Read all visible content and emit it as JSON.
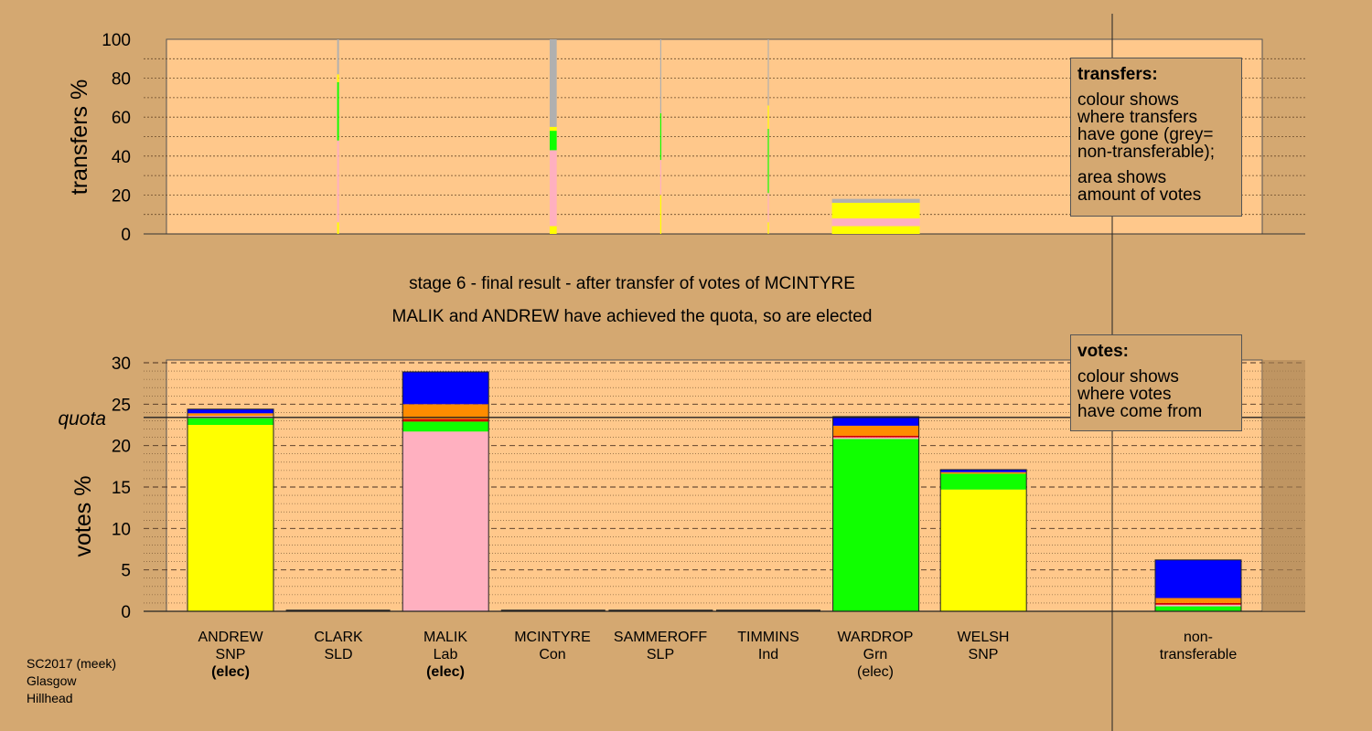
{
  "captions": {
    "stage": "stage 6 - final result - after transfer of votes of MCINTYRE",
    "elected": "MALIK and ANDREW have achieved the quota, so are elected"
  },
  "legends": {
    "transfers": {
      "title": "transfers:",
      "lines1": [
        "colour shows",
        "where transfers",
        "have gone (grey=",
        "non-transferable);"
      ],
      "lines2": [
        "area shows",
        "amount of votes"
      ]
    },
    "votes": {
      "title": "votes:",
      "lines1": [
        "colour shows",
        "where votes",
        "have come from"
      ]
    }
  },
  "colors": {
    "background": "#d4a871",
    "plot_background": "#ffc88b",
    "SNP": "#ffff00",
    "Lab": "#ffb0c0",
    "Grn": "#10ff00",
    "Con": "#0000ff",
    "SLD": "#ff8c00",
    "SLP": "#d00000",
    "Ind": "#555555",
    "nontransferable": "#b0b0b0"
  },
  "candidates": [
    {
      "name": "ANDREW",
      "party": "SNP",
      "status": "(elec)",
      "status_bold": true
    },
    {
      "name": "CLARK",
      "party": "SLD",
      "status": "",
      "status_bold": false
    },
    {
      "name": "MALIK",
      "party": "Lab",
      "status": "(elec)",
      "status_bold": true
    },
    {
      "name": "MCINTYRE",
      "party": "Con",
      "status": "",
      "status_bold": false
    },
    {
      "name": "SAMMEROFF",
      "party": "SLP",
      "status": "",
      "status_bold": false
    },
    {
      "name": "TIMMINS",
      "party": "Ind",
      "status": "",
      "status_bold": false
    },
    {
      "name": "WARDROP",
      "party": "Grn",
      "status": "(elec)",
      "status_bold": false
    },
    {
      "name": "WELSH",
      "party": "SNP",
      "status": "",
      "status_bold": false
    }
  ],
  "nontransferable_label": [
    "non-",
    "transferable"
  ],
  "source": [
    "SC2017 (meek)",
    "Glasgow",
    "Hillhead"
  ],
  "chart_data": [
    {
      "type": "bar",
      "subtype": "stacked-variable-width",
      "ylabel": "transfers %",
      "ylim": [
        0,
        100
      ],
      "yticks": [
        0,
        20,
        40,
        60,
        80,
        100
      ],
      "grid": true,
      "bars": [
        {
          "candidate": "CLARK",
          "width": 2.0,
          "segments": [
            {
              "to": "SNP",
              "value": 6
            },
            {
              "to": "Lab",
              "value": 42
            },
            {
              "to": "Grn",
              "value": 30
            },
            {
              "to": "SNP",
              "value": 4
            },
            {
              "to": "non-transferable",
              "value": 18
            }
          ]
        },
        {
          "candidate": "MCINTYRE",
          "width": 8.0,
          "segments": [
            {
              "to": "SNP",
              "value": 4
            },
            {
              "to": "Lab",
              "value": 39
            },
            {
              "to": "Grn",
              "value": 10
            },
            {
              "to": "SNP",
              "value": 2
            },
            {
              "to": "non-transferable",
              "value": 45
            }
          ]
        },
        {
          "candidate": "SAMMEROFF",
          "width": 0.2,
          "segments": [
            {
              "to": "SNP",
              "value": 20
            },
            {
              "to": "Lab",
              "value": 18
            },
            {
              "to": "Grn",
              "value": 24
            },
            {
              "to": "non-transferable",
              "value": 38
            }
          ]
        },
        {
          "candidate": "TIMMINS",
          "width": 0.3,
          "segments": [
            {
              "to": "SNP",
              "value": 6
            },
            {
              "to": "Lab",
              "value": 15
            },
            {
              "to": "Grn",
              "value": 33
            },
            {
              "to": "SNP",
              "value": 12
            },
            {
              "to": "non-transferable",
              "value": 34
            }
          ]
        },
        {
          "candidate": "WARDROP",
          "width": 100,
          "segments": [
            {
              "to": "SNP",
              "value": 4
            },
            {
              "to": "Lab",
              "value": 4
            },
            {
              "to": "SNP",
              "value": 8
            },
            {
              "to": "non-transferable",
              "value": 2
            }
          ]
        }
      ]
    },
    {
      "type": "bar",
      "subtype": "stacked",
      "ylabel": "votes %",
      "ylim": [
        0,
        30
      ],
      "yticks": [
        0,
        5,
        10,
        15,
        20,
        25,
        30
      ],
      "grid": true,
      "quota": 23.4,
      "quota_label": "quota",
      "categories": [
        "ANDREW",
        "CLARK",
        "MALIK",
        "MCINTYRE",
        "SAMMEROFF",
        "TIMMINS",
        "WARDROP",
        "WELSH",
        "non-transferable"
      ],
      "stacks": [
        [
          {
            "from": "SNP",
            "value": 22.5
          },
          {
            "from": "Grn",
            "value": 0.8
          },
          {
            "from": "Lab",
            "value": 0.3
          },
          {
            "from": "SLD",
            "value": 0.3
          },
          {
            "from": "Con",
            "value": 0.5
          }
        ],
        [],
        [
          {
            "from": "Lab",
            "value": 21.7
          },
          {
            "from": "Grn",
            "value": 1.2
          },
          {
            "from": "SLP",
            "value": 0.3
          },
          {
            "from": "SLD",
            "value": 1.8
          },
          {
            "from": "Con",
            "value": 3.9
          }
        ],
        [],
        [],
        [],
        [
          {
            "from": "Grn",
            "value": 20.8
          },
          {
            "from": "Lab",
            "value": 0.2
          },
          {
            "from": "SLP",
            "value": 0.2
          },
          {
            "from": "SLD",
            "value": 1.2
          },
          {
            "from": "Con",
            "value": 1.1
          }
        ],
        [
          {
            "from": "SNP",
            "value": 14.7
          },
          {
            "from": "Grn",
            "value": 1.9
          },
          {
            "from": "SLD",
            "value": 0.2
          },
          {
            "from": "Con",
            "value": 0.3
          }
        ],
        [
          {
            "from": "Grn",
            "value": 0.6
          },
          {
            "from": "Lab",
            "value": 0.2
          },
          {
            "from": "SLP",
            "value": 0.2
          },
          {
            "from": "SLD",
            "value": 0.6
          },
          {
            "from": "Con",
            "value": 4.6
          }
        ]
      ]
    }
  ]
}
